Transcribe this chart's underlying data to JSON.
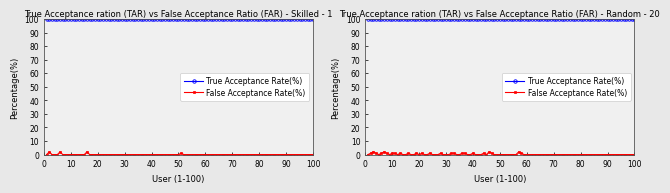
{
  "title1": "True Acceptance ration (TAR) vs False Acceptance Ratio (FAR) - Skilled - 1",
  "title2": "True Acceptance ration (TAR) vs False Acceptance Ratio (FAR) - Random - 20",
  "xlabel": "User (1-100)",
  "ylabel": "Percentage(%)",
  "xlim": [
    0,
    100
  ],
  "ylim": [
    0,
    100
  ],
  "yticks": [
    0,
    10,
    20,
    30,
    40,
    50,
    60,
    70,
    80,
    90,
    100
  ],
  "xticks": [
    0,
    10,
    20,
    30,
    40,
    50,
    60,
    70,
    80,
    90,
    100
  ],
  "tar_color": "#0000ff",
  "far_color": "#ff0000",
  "tar_label": "True Acceptance Rate(%)",
  "far_label": "False Acceptance Rate(%)",
  "tar_value": 100,
  "far_values_skilled": [
    0,
    2,
    0,
    0,
    0,
    2,
    0,
    0,
    0,
    0,
    0,
    0,
    0,
    0,
    0,
    2,
    0,
    0,
    0,
    0,
    0,
    0,
    0,
    0,
    0,
    0,
    0,
    0,
    0,
    0,
    0,
    0,
    0,
    0,
    0,
    0,
    0,
    0,
    0,
    0,
    0,
    0,
    0,
    0,
    0,
    0,
    0,
    0,
    0,
    0,
    1,
    0,
    0,
    0,
    0,
    0,
    0,
    0,
    0,
    0,
    0,
    0,
    0,
    0,
    0,
    0,
    0,
    0,
    0,
    0,
    0,
    0,
    0,
    0,
    0,
    0,
    0,
    0,
    0,
    0,
    0,
    0,
    0,
    0,
    0,
    0,
    0,
    0,
    0,
    0,
    0,
    0,
    0,
    0,
    0,
    0,
    0,
    0,
    0,
    0
  ],
  "far_values_random": [
    0,
    1,
    2,
    1,
    0,
    1,
    2,
    1,
    0,
    1,
    1,
    0,
    1,
    0,
    0,
    1,
    0,
    0,
    1,
    0,
    1,
    0,
    0,
    1,
    0,
    0,
    0,
    1,
    0,
    0,
    0,
    1,
    1,
    0,
    0,
    1,
    1,
    0,
    0,
    1,
    0,
    0,
    0,
    1,
    0,
    2,
    1,
    0,
    0,
    0,
    0,
    0,
    0,
    0,
    0,
    0,
    2,
    1,
    0,
    0,
    0,
    0,
    0,
    0,
    0,
    0,
    0,
    0,
    0,
    0,
    0,
    0,
    0,
    0,
    0,
    0,
    0,
    0,
    0,
    0,
    0,
    0,
    0,
    0,
    0,
    0,
    0,
    0,
    0,
    0,
    0,
    0,
    0,
    0,
    0,
    0,
    0,
    0,
    0,
    0
  ],
  "fig_facecolor": "#e8e8e8",
  "axes_facecolor": "#f0f0f0",
  "title_fontsize": 6.0,
  "label_fontsize": 6.0,
  "tick_fontsize": 5.5,
  "legend_fontsize": 5.5,
  "legend_loc": "lower right"
}
